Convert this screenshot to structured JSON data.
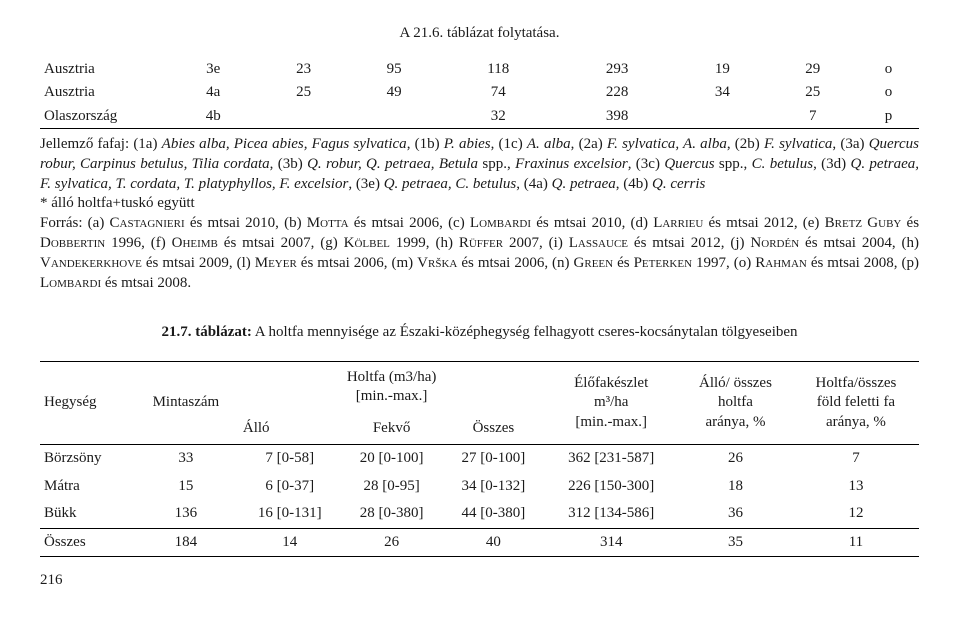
{
  "continuation": "A 21.6. táblázat folytatása.",
  "table1": {
    "rows": [
      [
        "Ausztria",
        "3e",
        "23",
        "95",
        "118",
        "293",
        "19",
        "29",
        "o"
      ],
      [
        "Ausztria",
        "4a",
        "25",
        "49",
        "74",
        "228",
        "34",
        "25",
        "o"
      ],
      [
        "Olaszország",
        "4b",
        "",
        "",
        "32",
        "398",
        "",
        "7",
        "p"
      ]
    ]
  },
  "notes": {
    "p1_prefix": "Jellemző fafaj: (1a) ",
    "p1_i1": "Abies alba, Picea abies, Fagus sylvatica",
    "p1_2": ", (1b) ",
    "p1_i2": "P. abies",
    "p1_3": ", (1c) ",
    "p1_i3": "A. alba",
    "p1_4": ", (2a) ",
    "p1_i4": "F. sylvatica, A. alba",
    "p1_5": ", (2b) ",
    "p1_i5": "F. sylvatica",
    "p1_6": ", (3a) ",
    "p1_i6": "Quercus robur, Carpinus betulus, Tilia cordata",
    "p1_7": ", (3b) ",
    "p1_i7": "Q. robur, Q. petraea, Betula",
    "p1_8": " spp., ",
    "p1_i8": "Fraxinus excelsior",
    "p1_9": ", (3c) ",
    "p1_i9": "Quercus",
    "p1_10": " spp., ",
    "p1_i10": "C. betulus",
    "p1_11": ", (3d) ",
    "p1_i11": "Q. petraea, F. sylvatica, T. cordata, T. platyphyllos, F. excelsior",
    "p1_12": ", (3e) ",
    "p1_i12": "Q. petraea, C. betulus",
    "p1_13": ", (4a) ",
    "p1_i13": "Q. petraea",
    "p1_14": ", (4b) ",
    "p1_i14": "Q. cerris",
    "p2": "* álló holtfa+tuskó együtt",
    "p3_a": "Forrás: (a) ",
    "p3_1": "Castagnieri",
    "p3_b": " és mtsai 2010, (b) ",
    "p3_2": "Motta",
    "p3_c": " és mtsai 2006, (c) ",
    "p3_3": "Lombardi",
    "p3_d": " és mtsai 2010, (d) ",
    "p3_4": "Larrieu",
    "p3_e": " és mtsai 2012, (e) ",
    "p3_5": "Bretz Guby",
    "p3_f": " és ",
    "p3_6": "Dobbertin",
    "p3_g": " 1996, (f) ",
    "p3_7": "Oheimb",
    "p3_h": " és mtsai 2007, (g) ",
    "p3_8": "Kölbel",
    "p3_i": " 1999, (h) ",
    "p3_9": "Rüffer",
    "p3_j": " 2007, (i) ",
    "p3_10": "Lassauce",
    "p3_k": " és mtsai 2012, (j) ",
    "p3_11": "Nordén",
    "p3_l": " és mtsai 2004, (h) ",
    "p3_12": "Vandekerkhove",
    "p3_m": " és mtsai 2009, (l) ",
    "p3_13": "Meyer",
    "p3_n": " és mtsai 2006, (m) ",
    "p3_14": "Vrška",
    "p3_o": " és mtsai 2006, (n) ",
    "p3_15": "Green",
    "p3_p": " és ",
    "p3_16": "Peterken",
    "p3_q": " 1997, (o) ",
    "p3_17": "Rahman",
    "p3_r": " és mtsai 2008, (p) ",
    "p3_18": "Lombardi",
    "p3_s": " és mtsai 2008."
  },
  "caption": {
    "num": "21.7. táblázat:",
    "text": " A holtfa mennyisége az Északi-középhegység felhagyott cseres-kocsánytalan tölgyeseiben"
  },
  "table2": {
    "headers": {
      "h1": "Hegység",
      "h2": "Mintaszám",
      "h3": "Holtfa (m3/ha)\n[min.-max.]",
      "h4": "Élőfakészlet\nm³/ha\n[min.-max.]",
      "h5": "Álló/ összes\nholtfa\naránya, %",
      "h6": "Holtfa/összes\nföld feletti fa\naránya, %",
      "sub1": "Álló",
      "sub2": "Fekvő",
      "sub3": "Összes"
    },
    "rows": [
      [
        "Börzsöny",
        "33",
        "7 [0-58]",
        "20 [0-100]",
        "27 [0-100]",
        "362 [231-587]",
        "26",
        "7"
      ],
      [
        "Mátra",
        "15",
        "6 [0-37]",
        "28 [0-95]",
        "34 [0-132]",
        "226 [150-300]",
        "18",
        "13"
      ],
      [
        "Bükk",
        "136",
        "16 [0-131]",
        "28 [0-380]",
        "44 [0-380]",
        "312 [134-586]",
        "36",
        "12"
      ],
      [
        "Összes",
        "184",
        "14",
        "26",
        "40",
        "314",
        "35",
        "11"
      ]
    ]
  },
  "pageNumber": "216"
}
